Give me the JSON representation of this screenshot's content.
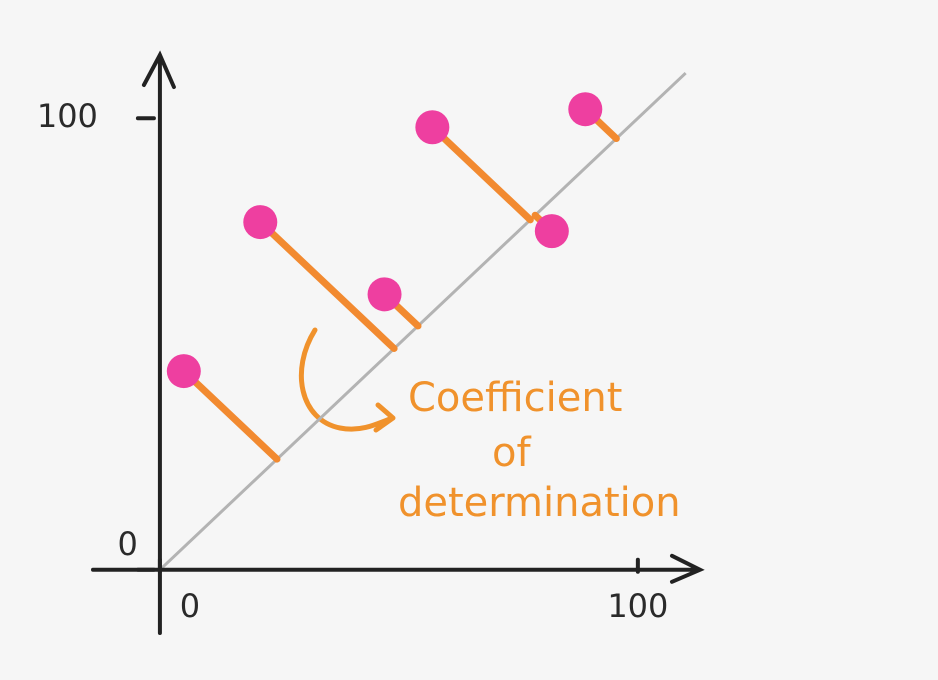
{
  "chart_data": {
    "type": "scatter",
    "x": [
      5,
      21,
      47,
      57,
      82,
      89
    ],
    "values": [
      44,
      77,
      61,
      98,
      75,
      102
    ],
    "color": "#ee3fa0",
    "residual_color": "#f28a30",
    "trend_line": {
      "x": [
        0,
        110
      ],
      "y": [
        0,
        110
      ],
      "color": "#b3b3b3"
    },
    "xlim": [
      -14,
      113
    ],
    "ylim": [
      -14,
      114
    ],
    "xticks": [
      0,
      100
    ],
    "yticks": [
      0,
      100
    ],
    "annotation": [
      "Coefficient",
      "of",
      "determination"
    ]
  }
}
